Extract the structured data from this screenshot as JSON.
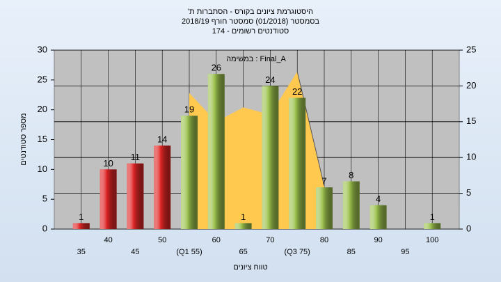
{
  "chart_data": {
    "type": "bar",
    "title": "'היסטוגרמת ציונים בקורס - הסתברות ת",
    "subtitle": "בסמסטר  (01/2018)  סמסטר חורף 2018/19",
    "subtitle2": "סטודנטים רשומים - 174",
    "annotation": "במשימה : Final_A",
    "y_label": "מספר סטודנטים",
    "x_label": "טווח ציונים",
    "categories": [
      "35",
      "40",
      "45",
      "50",
      "(Q1 55)",
      "60",
      "65",
      "70",
      "(Q3 75)",
      "80",
      "85",
      "90",
      "95",
      "100"
    ],
    "values": [
      1,
      10,
      11,
      14,
      19,
      26,
      1,
      24,
      22,
      7,
      8,
      4,
      null,
      1
    ],
    "bar_colors": [
      "#e02626",
      "#e02626",
      "#e02626",
      "#e02626",
      "#9cc24e",
      "#9cc24e",
      "#9cc24e",
      "#9cc24e",
      "#9cc24e",
      "#9cc24e",
      "#9cc24e",
      "#9cc24e",
      "#9cc24e",
      "#9cc24e"
    ],
    "ylim": [
      0,
      30
    ],
    "yticks": [
      0,
      5,
      10,
      15,
      20,
      25,
      30
    ],
    "y2lim": [
      0,
      25
    ],
    "y2ticks": [
      0,
      5,
      10,
      15,
      20,
      25
    ],
    "area": {
      "x": [
        55,
        60,
        65,
        70,
        75,
        80
      ],
      "values": [
        19,
        15,
        17,
        16,
        22,
        6
      ],
      "color": "#ffc94f",
      "axis": "y2"
    },
    "grid": true
  }
}
